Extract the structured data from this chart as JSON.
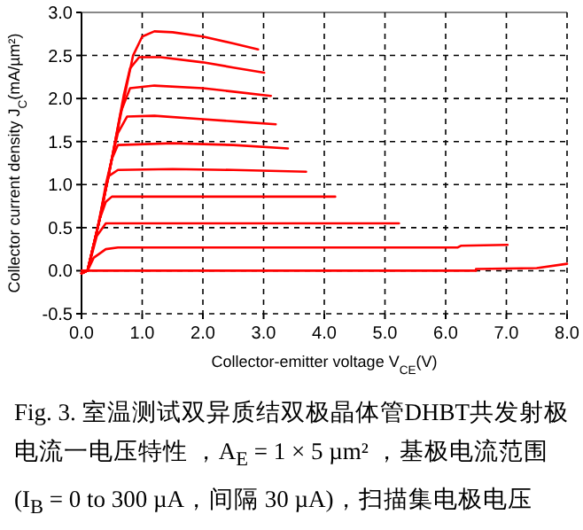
{
  "chart_data": {
    "type": "line",
    "xlabel": "Collector-emitter voltage V$_{CE}$(V)",
    "ylabel": "Collector current density J$_{C}$(mA/µm²)",
    "annotations": [
      "Fig. 3.  室温测试双异质结双极晶体管DHBT共发射极电流一电压特性 ，A$_{E}$ = 1 × 5 µm² ，基极电流范围(I$_{B}$ = 0 to 300 µA，间隔 30 µA)，扫描集电极电压"
    ],
    "xlim": [
      0,
      8
    ],
    "ylim": [
      -0.5,
      3
    ],
    "xticks": [
      {
        "value": 0,
        "label": "0.0"
      },
      {
        "value": 1,
        "label": "1.0"
      },
      {
        "value": 2,
        "label": "2.0"
      },
      {
        "value": 3,
        "label": "3.0"
      },
      {
        "value": 4,
        "label": "4.0"
      },
      {
        "value": 5,
        "label": "5.0"
      },
      {
        "value": 6,
        "label": "6.0"
      },
      {
        "value": 7,
        "label": "7.0"
      },
      {
        "value": 8,
        "label": "8.0"
      }
    ],
    "yticks": [
      {
        "value": -0.5,
        "label": "-0.5"
      },
      {
        "value": 0,
        "label": "0.0"
      },
      {
        "value": 0.5,
        "label": "0.5"
      },
      {
        "value": 1,
        "label": "1.0"
      },
      {
        "value": 1.5,
        "label": "1.5"
      },
      {
        "value": 2,
        "label": "2.0"
      },
      {
        "value": 2.5,
        "label": "2.5"
      },
      {
        "value": 3,
        "label": "3.0"
      }
    ],
    "grid": true,
    "line_style": "solid",
    "marker": "none",
    "series": [
      {
        "color": "#ff0000",
        "x": [
          0,
          0.1,
          0.3,
          0.5,
          0.7,
          0.85,
          1.0,
          1.2,
          1.5,
          2.0,
          2.5,
          2.91
        ],
        "values": [
          -0.03,
          0,
          0.6,
          1.3,
          2.0,
          2.5,
          2.72,
          2.78,
          2.77,
          2.72,
          2.64,
          2.57
        ]
      },
      {
        "color": "#ff0000",
        "x": [
          0,
          0.1,
          0.3,
          0.5,
          0.7,
          0.8,
          0.95,
          1.3,
          2.0,
          2.5,
          3.01
        ],
        "values": [
          -0.03,
          0,
          0.6,
          1.3,
          2.05,
          2.35,
          2.48,
          2.48,
          2.42,
          2.36,
          2.3
        ]
      },
      {
        "color": "#ff0000",
        "x": [
          0,
          0.1,
          0.3,
          0.5,
          0.65,
          0.8,
          1.2,
          2.0,
          2.5,
          3.12
        ],
        "values": [
          -0.03,
          0,
          0.6,
          1.3,
          1.85,
          2.12,
          2.15,
          2.12,
          2.08,
          2.03
        ]
      },
      {
        "color": "#ff0000",
        "x": [
          0,
          0.1,
          0.3,
          0.5,
          0.6,
          0.75,
          1.2,
          2.0,
          2.6,
          3.2
        ],
        "values": [
          -0.03,
          0,
          0.6,
          1.3,
          1.6,
          1.79,
          1.8,
          1.76,
          1.73,
          1.7
        ]
      },
      {
        "color": "#ff0000",
        "x": [
          0,
          0.1,
          0.3,
          0.4,
          0.5,
          0.6,
          1.5,
          2.5,
          3.4
        ],
        "values": [
          -0.03,
          0,
          0.6,
          1.0,
          1.3,
          1.46,
          1.48,
          1.46,
          1.42
        ]
      },
      {
        "color": "#ff0000",
        "x": [
          0,
          0.1,
          0.25,
          0.35,
          0.45,
          0.6,
          1.5,
          2.5,
          3.7
        ],
        "values": [
          -0.03,
          0,
          0.45,
          0.8,
          1.1,
          1.17,
          1.18,
          1.17,
          1.15
        ]
      },
      {
        "color": "#ff0000",
        "x": [
          0,
          0.1,
          0.3,
          0.4,
          0.5,
          4.18
        ],
        "values": [
          -0.03,
          0,
          0.6,
          0.8,
          0.86,
          0.86
        ]
      },
      {
        "color": "#ff0000",
        "x": [
          0,
          0.1,
          0.25,
          0.4,
          5.23
        ],
        "values": [
          -0.03,
          0,
          0.4,
          0.55,
          0.55
        ]
      },
      {
        "color": "#ff0000",
        "x": [
          0,
          0.1,
          0.2,
          0.4,
          0.6,
          6.2,
          6.25,
          7.02
        ],
        "values": [
          -0.03,
          0,
          0.15,
          0.25,
          0.27,
          0.27,
          0.29,
          0.3
        ]
      },
      {
        "color": "#ff0000",
        "x": [
          0,
          6.5,
          6.5,
          7.5,
          8.0
        ],
        "values": [
          0,
          0,
          0.02,
          0.03,
          0.08
        ]
      }
    ]
  }
}
